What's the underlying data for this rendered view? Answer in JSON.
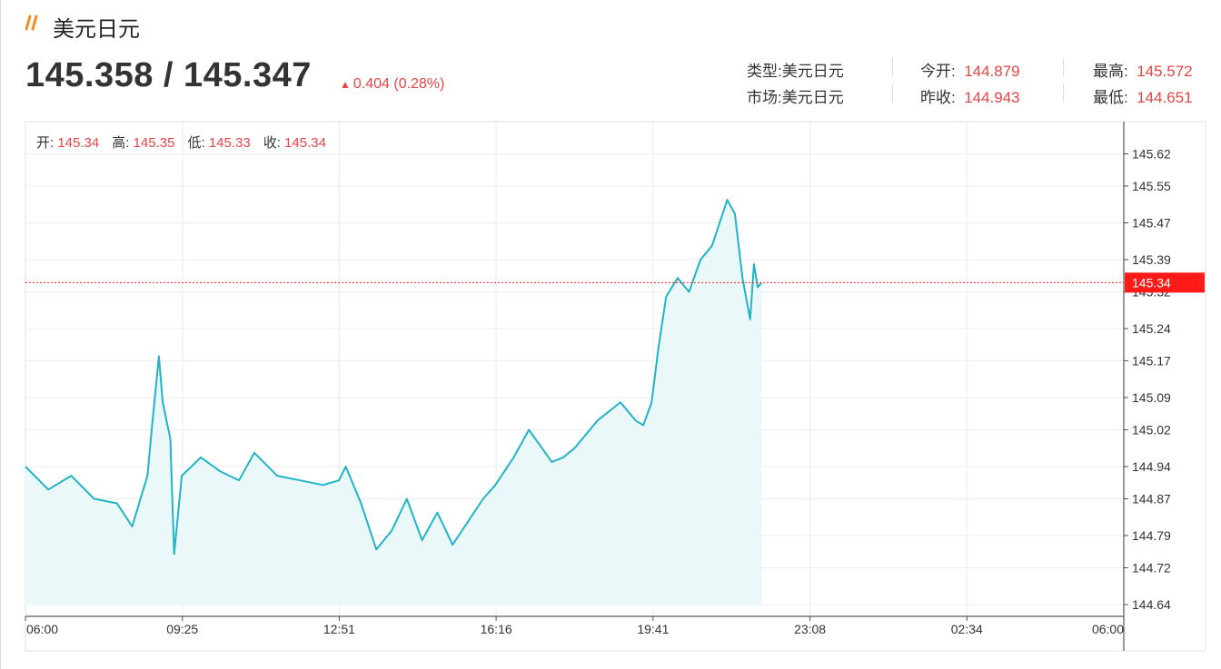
{
  "header": {
    "icon": "double-slash-icon",
    "title": "美元日元",
    "price": "145.358 / 145.347",
    "change": "0.404 (0.28%)",
    "change_color": "#e64545"
  },
  "info": {
    "type_label": "类型:",
    "type_value": "美元日元",
    "market_label": "市场:",
    "market_value": "美元日元",
    "open_label": "今开:",
    "open_value": "144.879",
    "prev_close_label": "昨收:",
    "prev_close_value": "144.943",
    "high_label": "最高:",
    "high_value": "145.572",
    "low_label": "最低:",
    "low_value": "144.651"
  },
  "ohlc": {
    "open_label": "开:",
    "open_value": "145.34",
    "high_label": "高:",
    "high_value": "145.35",
    "low_label": "低:",
    "low_value": "145.33",
    "close_label": "收:",
    "close_value": "145.34"
  },
  "chart_data": {
    "type": "area",
    "title": "",
    "xlabel": "",
    "ylabel": "",
    "x_tick_labels": [
      "06:00",
      "09:25",
      "12:51",
      "16:16",
      "19:41",
      "23:08",
      "02:34",
      "06:00"
    ],
    "y_tick_labels": [
      "144.64",
      "144.72",
      "144.79",
      "144.87",
      "144.94",
      "145.02",
      "145.09",
      "145.17",
      "145.24",
      "145.32",
      "145.39",
      "145.47",
      "145.55",
      "145.62"
    ],
    "ylim": [
      144.64,
      145.62
    ],
    "current_price": "145.34",
    "current_price_color": "#ff1a1a",
    "line_color": "#21b4c6",
    "fill_color": "#eaf8f9",
    "grid": true,
    "series": [
      {
        "x": [
          "06:00",
          "06:30",
          "07:00",
          "07:30",
          "08:00",
          "08:20",
          "08:40",
          "08:45",
          "08:55",
          "09:00",
          "09:10",
          "09:15",
          "09:25",
          "09:50",
          "10:15",
          "10:40",
          "11:00",
          "11:30",
          "12:00",
          "12:30",
          "12:51",
          "13:00",
          "13:20",
          "13:40",
          "14:00",
          "14:20",
          "14:40",
          "15:00",
          "15:20",
          "15:40",
          "16:00",
          "16:16",
          "16:40",
          "17:00",
          "17:30",
          "17:45",
          "18:00",
          "18:30",
          "19:00",
          "19:20",
          "19:30",
          "19:41",
          "19:50",
          "20:00",
          "20:15",
          "20:30",
          "20:45",
          "21:00",
          "21:20",
          "21:30",
          "21:40",
          "21:50",
          "21:55",
          "22:00",
          "22:05"
        ],
        "y": [
          144.94,
          144.89,
          144.92,
          144.87,
          144.86,
          144.81,
          144.92,
          145.01,
          145.18,
          145.08,
          145.0,
          144.75,
          144.92,
          144.96,
          144.93,
          144.91,
          144.97,
          144.92,
          144.91,
          144.9,
          144.91,
          144.94,
          144.86,
          144.76,
          144.8,
          144.87,
          144.78,
          144.84,
          144.77,
          144.82,
          144.87,
          144.9,
          144.96,
          145.02,
          144.95,
          144.96,
          144.98,
          145.04,
          145.08,
          145.04,
          145.03,
          145.08,
          145.2,
          145.31,
          145.35,
          145.32,
          145.39,
          145.42,
          145.52,
          145.49,
          145.35,
          145.26,
          145.38,
          145.33,
          145.34
        ]
      }
    ]
  }
}
